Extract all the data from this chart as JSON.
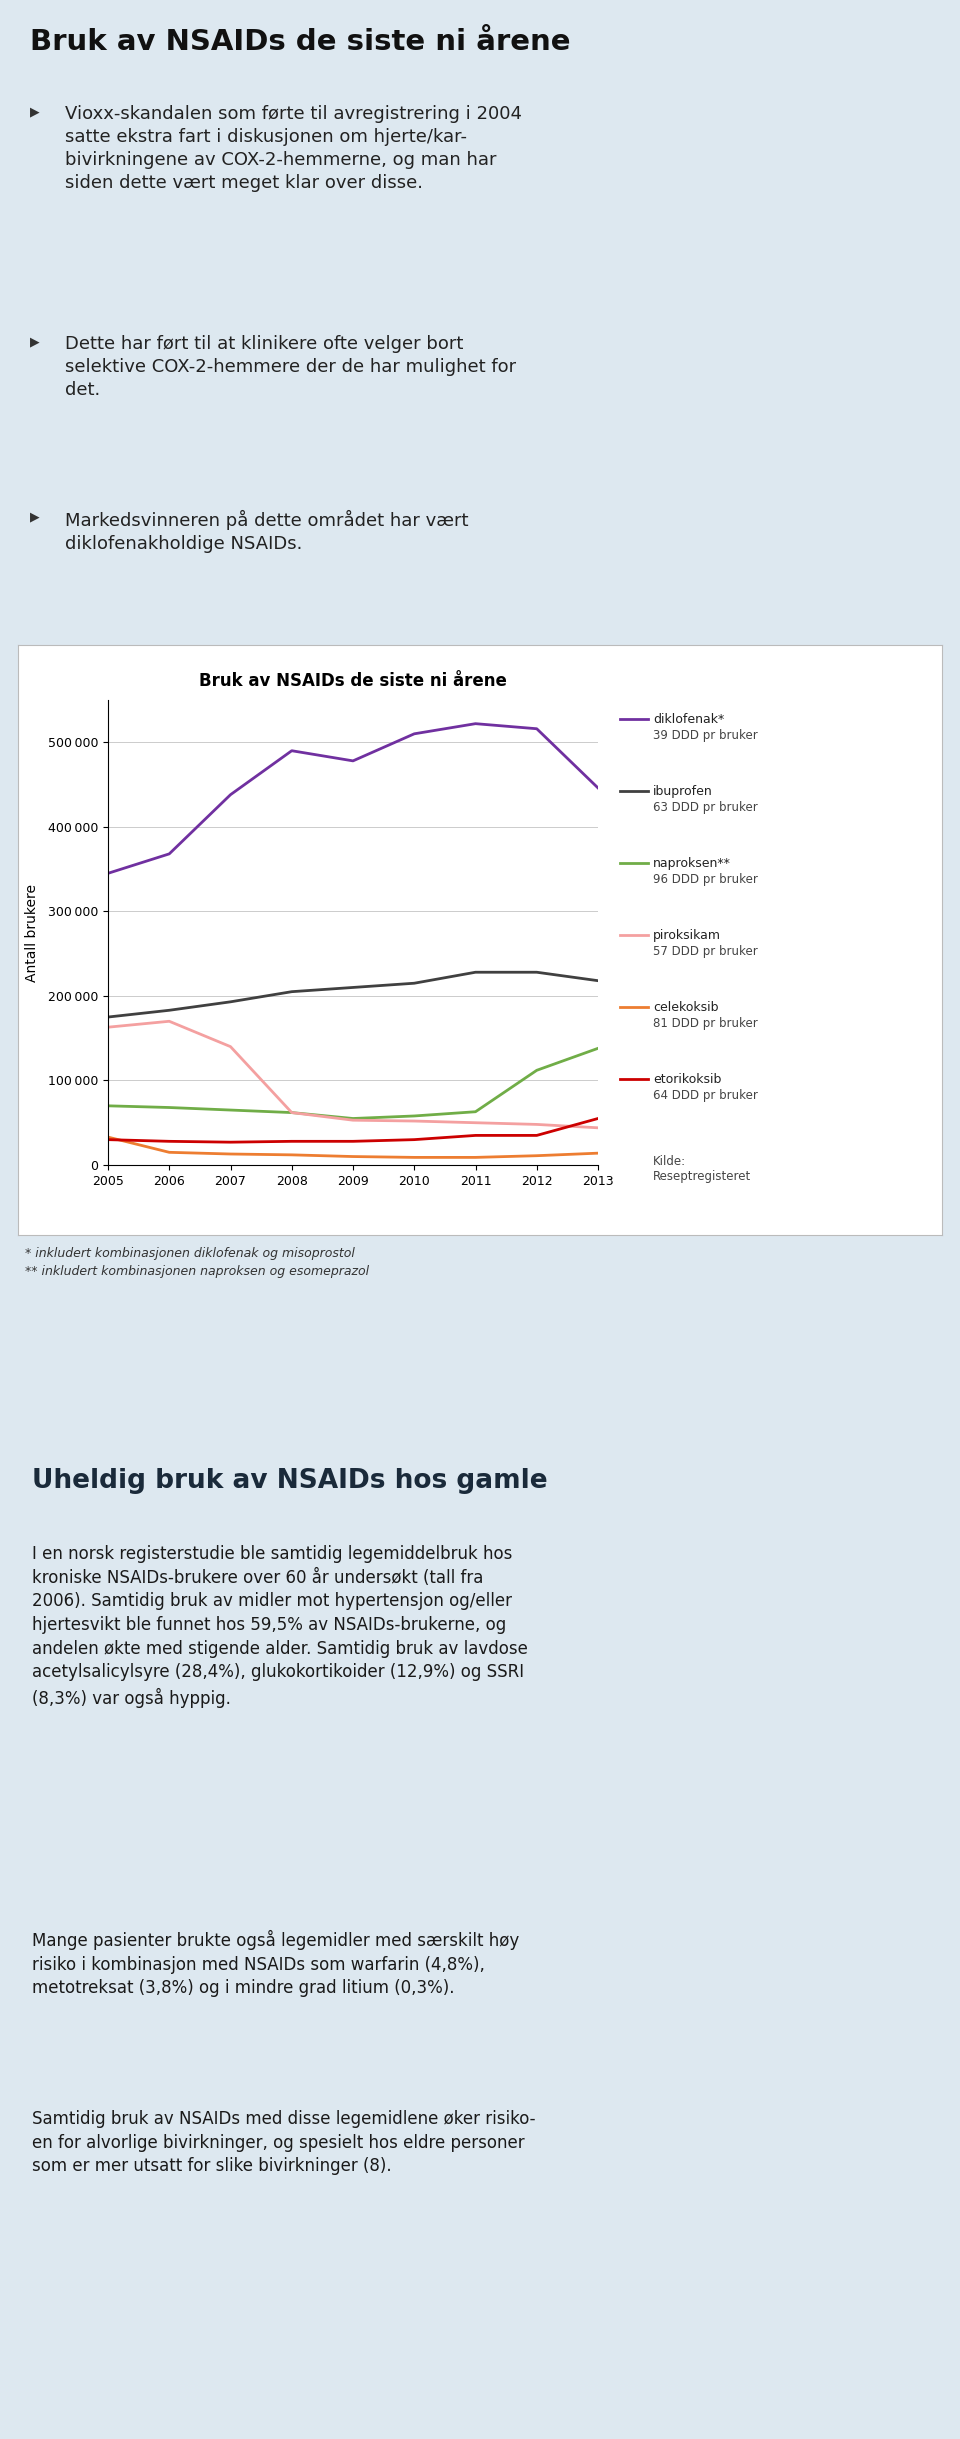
{
  "page_bg": "#dde8f0",
  "chart_bg": "#ffffff",
  "chart_border": "#cccccc",
  "section1_title": "Bruk av NSAIDs de siste ni årene",
  "bullet1": "Vioxx-skandalen som førte til avregistrering i 2004 satte ekstra fart i diskusjonen om hjerte/kar-bivirkningene av COX-2-hemmerne, og man har siden dette vært meget klar over disse.",
  "bullet2": "Dette har ført til at klinikere ofte velger bort selektive COX-2-hemmere der de har mulighet for det.",
  "bullet3": "Markedsvinneren på dette området har vært diklofenakholdige NSAIDs.",
  "chart_title": "Bruk av NSAIDs de siste ni årene",
  "chart_ylabel": "Antall brukere",
  "chart_footnote1": "* inkludert kombinasjonen diklofenak og misoprostol",
  "chart_footnote2": "** inkludert kombinasjonen naproksen og esomeprazol",
  "chart_source": "Kilde:\nReseptregisteret",
  "years": [
    2005,
    2006,
    2007,
    2008,
    2009,
    2010,
    2011,
    2012,
    2013
  ],
  "diklofenak_vals": [
    345000,
    368000,
    438000,
    490000,
    478000,
    510000,
    522000,
    516000,
    446000
  ],
  "ibuprofen_vals": [
    175000,
    183000,
    193000,
    205000,
    210000,
    215000,
    228000,
    228000,
    218000
  ],
  "naproksen_vals": [
    70000,
    68000,
    65000,
    62000,
    55000,
    58000,
    63000,
    112000,
    138000
  ],
  "piroksikam_vals": [
    163000,
    170000,
    140000,
    62000,
    53000,
    52000,
    50000,
    48000,
    44000
  ],
  "celekoksib_vals": [
    33000,
    15000,
    13000,
    12000,
    10000,
    9000,
    9000,
    11000,
    14000
  ],
  "etorikoksib_vals": [
    30000,
    28000,
    27000,
    28000,
    28000,
    30000,
    35000,
    35000,
    55000
  ],
  "diklofenak_color": "#7030a0",
  "ibuprofen_color": "#404040",
  "naproksen_color": "#70ad47",
  "piroksikam_color": "#f4a0a0",
  "celekoksib_color": "#ed7d31",
  "etorikoksib_color": "#cc0000",
  "section2_title": "Uheldig bruk av NSAIDs hos gamle",
  "section2_bg": "#a8c8e0",
  "section2_para1": "I en norsk registerstudie ble samtidig legemiddelbruk hos kroniske NSAIDs-brukere over 60 år undersøkt (tall fra 2006). Samtidig bruk av midler mot hypertensjon og/eller hjertesvikt ble funnet hos 59,5% av NSAIDs-brukerne, og andelen økte med stigende alder. Samtidig bruk av lavdose acetylsalicylsyre (28,4%), glukokortikoider (12,9%) og SSRI (8,3%) var også hyppig.",
  "section2_para2": "Mange pasienter brukte også legemidler med særskilt høy risiko i kombinasjon med NSAIDs som warfarin (4,8%), metotreksat (3,8%) og i mindre grad litium (0,3%).",
  "section2_para3": "Samtidig bruk av NSAIDs med disse legemidlene øker risiko-en for alvorlige bivirkninger, og spesielt hos eldre personer som er mer utsatt for slike bivirkninger (8)."
}
